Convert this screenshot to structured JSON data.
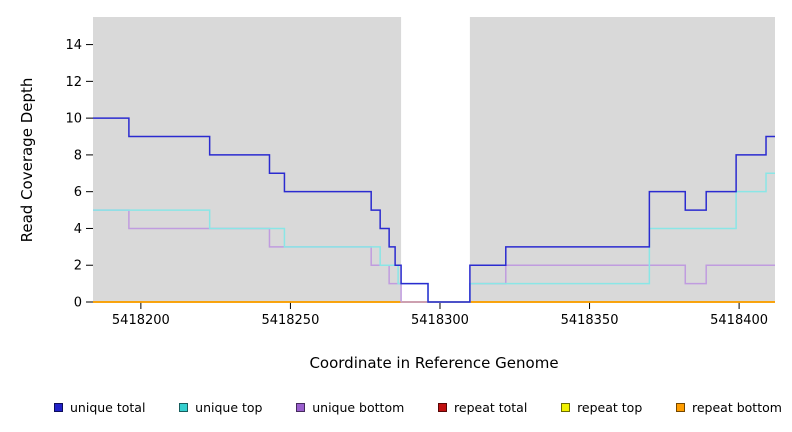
{
  "chart_data": {
    "type": "line",
    "step_interpolation": true,
    "title": "",
    "xlabel": "Coordinate in Reference Genome",
    "ylabel": "Read Coverage Depth",
    "xlim": [
      5418184,
      5418412
    ],
    "ylim": [
      0,
      15.5
    ],
    "xticks": [
      5418200,
      5418250,
      5418300,
      5418350,
      5418400
    ],
    "yticks": [
      0,
      2,
      4,
      6,
      8,
      10,
      12,
      14
    ],
    "grid": false,
    "legend_position": "bottom",
    "page_background": "#ffffff",
    "plot_background": "#d9d9d9",
    "gap_band": {
      "x_start": 5418287,
      "x_end": 5418310,
      "color": "#ffffff"
    },
    "series": [
      {
        "name": "unique total",
        "color": "#2b2bd0",
        "swatch": "#2121c8",
        "z": 6,
        "points": [
          [
            5418184,
            10
          ],
          [
            5418196,
            9
          ],
          [
            5418223,
            8
          ],
          [
            5418243,
            7
          ],
          [
            5418248,
            6
          ],
          [
            5418277,
            5
          ],
          [
            5418280,
            4
          ],
          [
            5418283,
            3
          ],
          [
            5418285,
            2
          ],
          [
            5418287,
            1
          ],
          [
            5418296,
            0
          ],
          [
            5418310,
            2
          ],
          [
            5418322,
            3
          ],
          [
            5418370,
            6
          ],
          [
            5418382,
            5
          ],
          [
            5418389,
            6
          ],
          [
            5418399,
            8
          ],
          [
            5418409,
            9
          ]
        ]
      },
      {
        "name": "unique top",
        "color": "#8ae6e6",
        "swatch": "#35cfcf",
        "z": 5,
        "points": [
          [
            5418184,
            5
          ],
          [
            5418223,
            4
          ],
          [
            5418248,
            3
          ],
          [
            5418280,
            2
          ],
          [
            5418286,
            1
          ],
          [
            5418296,
            0
          ],
          [
            5418310,
            1
          ],
          [
            5418370,
            4
          ],
          [
            5418399,
            6
          ],
          [
            5418409,
            7
          ]
        ]
      },
      {
        "name": "unique bottom",
        "color": "#c09cdf",
        "swatch": "#9a5fce",
        "z": 4,
        "points": [
          [
            5418184,
            5
          ],
          [
            5418196,
            4
          ],
          [
            5418243,
            3
          ],
          [
            5418277,
            2
          ],
          [
            5418283,
            1
          ],
          [
            5418287,
            0
          ],
          [
            5418310,
            1
          ],
          [
            5418322,
            2
          ],
          [
            5418382,
            1
          ],
          [
            5418389,
            2
          ]
        ]
      },
      {
        "name": "repeat total",
        "color": "#c01010",
        "swatch": "#c01010",
        "z": 1,
        "points": [
          [
            5418184,
            0
          ]
        ]
      },
      {
        "name": "repeat top",
        "color": "#f2f200",
        "swatch": "#f2f200",
        "z": 2,
        "points": [
          [
            5418184,
            0
          ]
        ]
      },
      {
        "name": "repeat bottom",
        "color": "#ff9d00",
        "swatch": "#ff9d00",
        "z": 3,
        "points": [
          [
            5418184,
            0
          ]
        ]
      }
    ]
  }
}
